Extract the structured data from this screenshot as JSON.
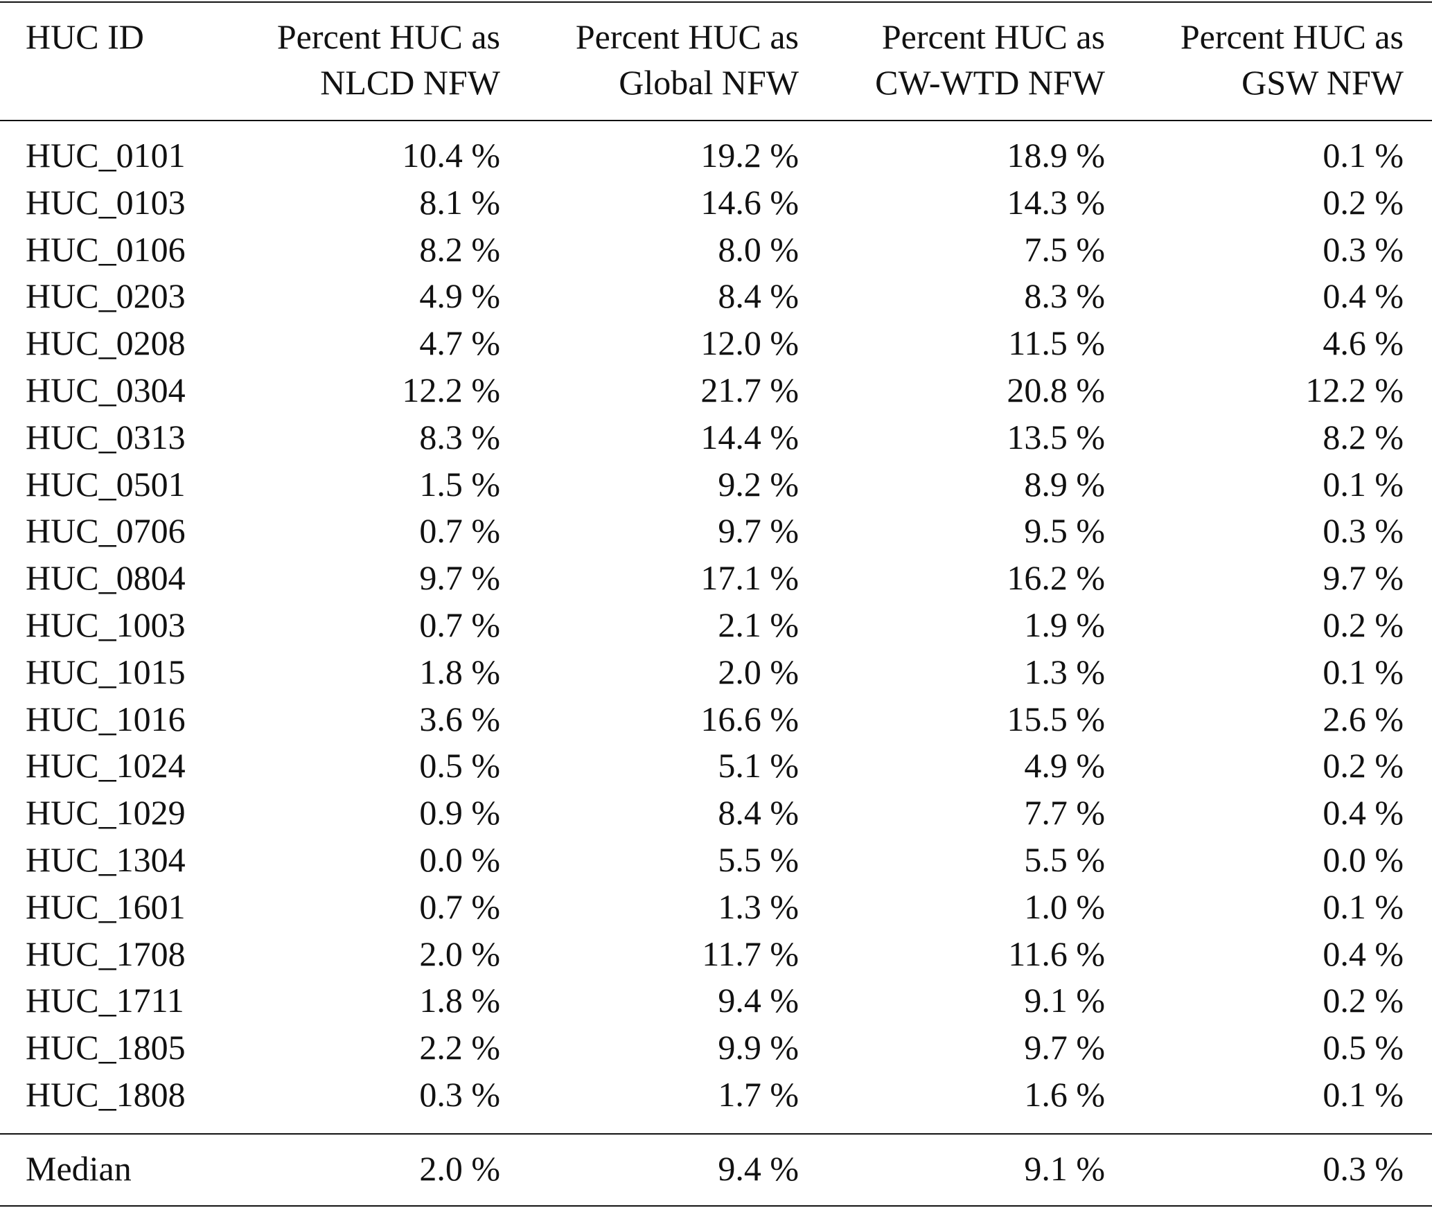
{
  "table": {
    "header": [
      [
        "HUC ID"
      ],
      [
        "Percent HUC as",
        "NLCD NFW"
      ],
      [
        "Percent HUC as",
        "Global NFW"
      ],
      [
        "Percent HUC as",
        "CW-WTD NFW"
      ],
      [
        "Percent HUC as",
        "GSW NFW"
      ]
    ],
    "rows": [
      [
        "HUC_0101",
        "10.4 %",
        "19.2 %",
        "18.9 %",
        "0.1 %"
      ],
      [
        "HUC_0103",
        "8.1 %",
        "14.6 %",
        "14.3 %",
        "0.2 %"
      ],
      [
        "HUC_0106",
        "8.2 %",
        "8.0 %",
        "7.5 %",
        "0.3 %"
      ],
      [
        "HUC_0203",
        "4.9 %",
        "8.4 %",
        "8.3 %",
        "0.4 %"
      ],
      [
        "HUC_0208",
        "4.7 %",
        "12.0 %",
        "11.5 %",
        "4.6 %"
      ],
      [
        "HUC_0304",
        "12.2 %",
        "21.7 %",
        "20.8 %",
        "12.2 %"
      ],
      [
        "HUC_0313",
        "8.3 %",
        "14.4 %",
        "13.5 %",
        "8.2 %"
      ],
      [
        "HUC_0501",
        "1.5 %",
        "9.2 %",
        "8.9 %",
        "0.1 %"
      ],
      [
        "HUC_0706",
        "0.7 %",
        "9.7 %",
        "9.5 %",
        "0.3 %"
      ],
      [
        "HUC_0804",
        "9.7 %",
        "17.1 %",
        "16.2 %",
        "9.7 %"
      ],
      [
        "HUC_1003",
        "0.7 %",
        "2.1 %",
        "1.9 %",
        "0.2 %"
      ],
      [
        "HUC_1015",
        "1.8 %",
        "2.0 %",
        "1.3 %",
        "0.1 %"
      ],
      [
        "HUC_1016",
        "3.6 %",
        "16.6 %",
        "15.5 %",
        "2.6 %"
      ],
      [
        "HUC_1024",
        "0.5 %",
        "5.1 %",
        "4.9 %",
        "0.2 %"
      ],
      [
        "HUC_1029",
        "0.9 %",
        "8.4 %",
        "7.7 %",
        "0.4 %"
      ],
      [
        "HUC_1304",
        "0.0 %",
        "5.5 %",
        "5.5 %",
        "0.0 %"
      ],
      [
        "HUC_1601",
        "0.7 %",
        "1.3 %",
        "1.0 %",
        "0.1 %"
      ],
      [
        "HUC_1708",
        "2.0 %",
        "11.7 %",
        "11.6 %",
        "0.4 %"
      ],
      [
        "HUC_1711",
        "1.8 %",
        "9.4 %",
        "9.1 %",
        "0.2 %"
      ],
      [
        "HUC_1805",
        "2.2 %",
        "9.9 %",
        "9.7 %",
        "0.5 %"
      ],
      [
        "HUC_1808",
        "0.3 %",
        "1.7 %",
        "1.6 %",
        "0.1 %"
      ]
    ],
    "footer": [
      "Median",
      "2.0 %",
      "9.4 %",
      "9.1 %",
      "0.3 %"
    ]
  }
}
